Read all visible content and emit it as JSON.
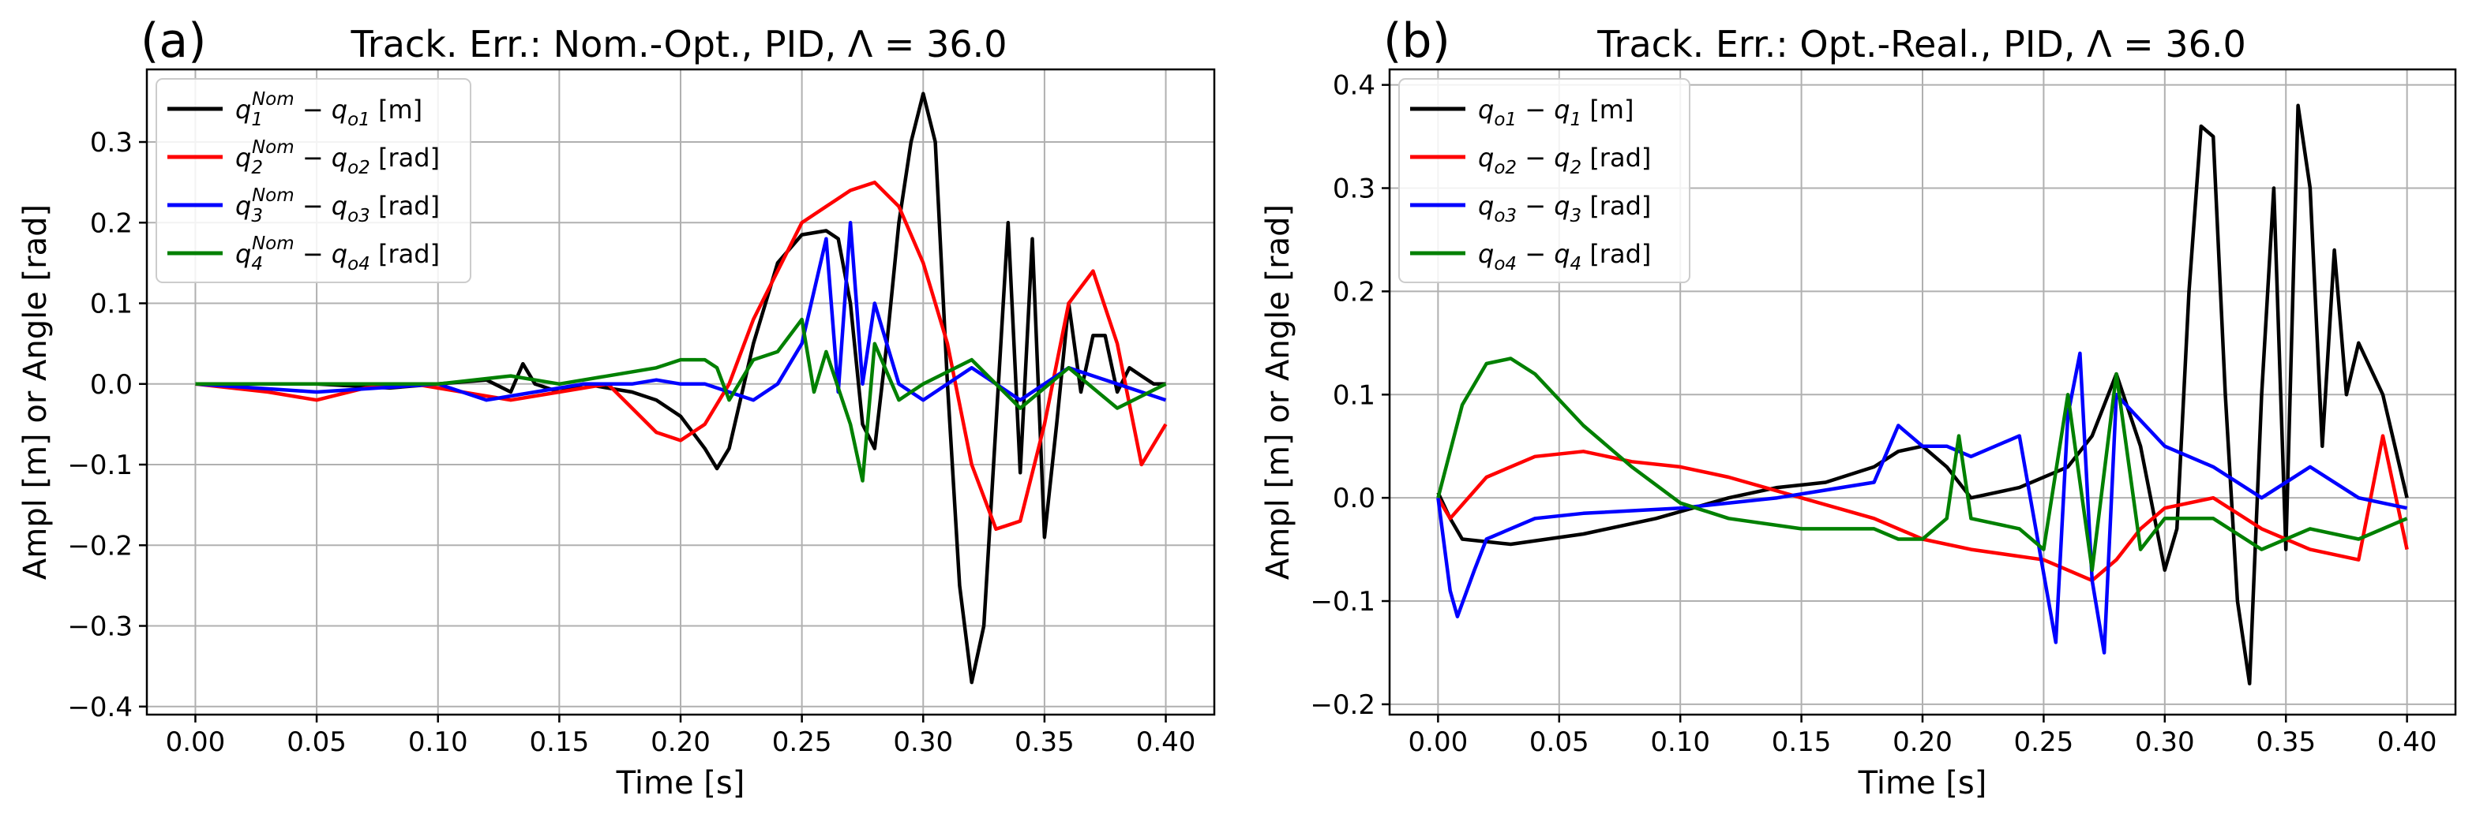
{
  "chart_data": [
    {
      "type": "line",
      "panel_label": "(a)",
      "title": "Track. Err.: Nom.-Opt., PID, Λ = 36.0",
      "xlabel": "Time [s]",
      "ylabel": "Ampl [m] or Angle [rad]",
      "xlim": [
        -0.02,
        0.42
      ],
      "ylim": [
        -0.41,
        0.39
      ],
      "xticks": [
        0.0,
        0.05,
        0.1,
        0.15,
        0.2,
        0.25,
        0.3,
        0.35,
        0.4
      ],
      "xtick_labels": [
        "0.00",
        "0.05",
        "0.10",
        "0.15",
        "0.20",
        "0.25",
        "0.30",
        "0.35",
        "0.40"
      ],
      "yticks": [
        -0.4,
        -0.3,
        -0.2,
        -0.1,
        0.0,
        0.1,
        0.2,
        0.3
      ],
      "ytick_labels": [
        "−0.4",
        "−0.3",
        "−0.2",
        "−0.1",
        "0.0",
        "0.1",
        "0.2",
        "0.3"
      ],
      "grid": true,
      "legend_position": "top-left",
      "series": [
        {
          "name": "q1Nom − qo1 [m]",
          "legend": {
            "base": "q",
            "sub": "1",
            "sup": "Nom",
            "rest": " − q",
            "rest_sub": "o1",
            "unit": " [m]"
          },
          "color": "#000000",
          "x": [
            0,
            0.05,
            0.08,
            0.1,
            0.12,
            0.13,
            0.135,
            0.14,
            0.15,
            0.16,
            0.18,
            0.19,
            0.2,
            0.21,
            0.215,
            0.22,
            0.23,
            0.24,
            0.25,
            0.26,
            0.265,
            0.27,
            0.275,
            0.28,
            0.285,
            0.29,
            0.295,
            0.3,
            0.305,
            0.31,
            0.315,
            0.32,
            0.325,
            0.33,
            0.335,
            0.34,
            0.345,
            0.35,
            0.355,
            0.36,
            0.365,
            0.37,
            0.375,
            0.38,
            0.385,
            0.39,
            0.395,
            0.4
          ],
          "y": [
            0,
            0.0,
            -0.005,
            0.0,
            0.005,
            -0.01,
            0.025,
            0.0,
            -0.01,
            0.0,
            -0.01,
            -0.02,
            -0.04,
            -0.08,
            -0.105,
            -0.08,
            0.05,
            0.15,
            0.185,
            0.19,
            0.18,
            0.1,
            -0.05,
            -0.08,
            0.05,
            0.2,
            0.3,
            0.36,
            0.3,
            0.0,
            -0.25,
            -0.37,
            -0.3,
            -0.05,
            0.2,
            -0.11,
            0.18,
            -0.19,
            -0.05,
            0.1,
            -0.01,
            0.06,
            0.06,
            -0.01,
            0.02,
            0.01,
            0.0,
            0.0
          ]
        },
        {
          "name": "q2Nom − qo2 [rad]",
          "legend": {
            "base": "q",
            "sub": "2",
            "sup": "Nom",
            "rest": " − q",
            "rest_sub": "o2",
            "unit": " [rad]"
          },
          "color": "#ff0000",
          "x": [
            0,
            0.03,
            0.05,
            0.07,
            0.09,
            0.11,
            0.13,
            0.15,
            0.17,
            0.19,
            0.2,
            0.21,
            0.22,
            0.23,
            0.24,
            0.25,
            0.26,
            0.27,
            0.28,
            0.29,
            0.3,
            0.31,
            0.32,
            0.33,
            0.34,
            0.35,
            0.36,
            0.37,
            0.38,
            0.39,
            0.4
          ],
          "y": [
            0,
            -0.01,
            -0.02,
            -0.005,
            0.0,
            -0.01,
            -0.02,
            -0.01,
            0.0,
            -0.06,
            -0.07,
            -0.05,
            0.0,
            0.08,
            0.14,
            0.2,
            0.22,
            0.24,
            0.25,
            0.22,
            0.15,
            0.05,
            -0.1,
            -0.18,
            -0.17,
            -0.05,
            0.1,
            0.14,
            0.05,
            -0.1,
            -0.05
          ]
        },
        {
          "name": "q3Nom − qo3 [rad]",
          "legend": {
            "base": "q",
            "sub": "3",
            "sup": "Nom",
            "rest": " − q",
            "rest_sub": "o3",
            "unit": " [rad]"
          },
          "color": "#0000ff",
          "x": [
            0,
            0.05,
            0.1,
            0.12,
            0.14,
            0.16,
            0.18,
            0.19,
            0.2,
            0.21,
            0.22,
            0.23,
            0.24,
            0.25,
            0.26,
            0.265,
            0.27,
            0.275,
            0.28,
            0.29,
            0.3,
            0.32,
            0.34,
            0.36,
            0.38,
            0.4
          ],
          "y": [
            0,
            -0.01,
            0.0,
            -0.02,
            -0.01,
            0.0,
            0.0,
            0.005,
            0.0,
            0.0,
            -0.01,
            -0.02,
            0.0,
            0.05,
            0.18,
            -0.01,
            0.2,
            0.0,
            0.1,
            0.0,
            -0.02,
            0.02,
            -0.02,
            0.02,
            0.0,
            -0.02
          ]
        },
        {
          "name": "q4Nom − qo4 [rad]",
          "legend": {
            "base": "q",
            "sub": "4",
            "sup": "Nom",
            "rest": " − q",
            "rest_sub": "o4",
            "unit": " [rad]"
          },
          "color": "#008000",
          "x": [
            0,
            0.05,
            0.1,
            0.13,
            0.15,
            0.19,
            0.195,
            0.2,
            0.21,
            0.215,
            0.22,
            0.23,
            0.24,
            0.25,
            0.255,
            0.26,
            0.27,
            0.275,
            0.28,
            0.29,
            0.3,
            0.32,
            0.34,
            0.36,
            0.38,
            0.4
          ],
          "y": [
            0,
            0.0,
            0.0,
            0.01,
            0.0,
            0.02,
            0.025,
            0.03,
            0.03,
            0.02,
            -0.02,
            0.03,
            0.04,
            0.08,
            -0.01,
            0.04,
            -0.05,
            -0.12,
            0.05,
            -0.02,
            0.0,
            0.03,
            -0.03,
            0.02,
            -0.03,
            0.0
          ]
        }
      ]
    },
    {
      "type": "line",
      "panel_label": "(b)",
      "title": "Track. Err.: Opt.-Real., PID, Λ = 36.0",
      "xlabel": "Time [s]",
      "ylabel": "Ampl [m] or Angle [rad]",
      "xlim": [
        -0.02,
        0.42
      ],
      "ylim": [
        -0.21,
        0.415
      ],
      "xticks": [
        0.0,
        0.05,
        0.1,
        0.15,
        0.2,
        0.25,
        0.3,
        0.35,
        0.4
      ],
      "xtick_labels": [
        "0.00",
        "0.05",
        "0.10",
        "0.15",
        "0.20",
        "0.25",
        "0.30",
        "0.35",
        "0.40"
      ],
      "yticks": [
        -0.2,
        -0.1,
        0.0,
        0.1,
        0.2,
        0.3,
        0.4
      ],
      "ytick_labels": [
        "−0.2",
        "−0.1",
        "0.0",
        "0.1",
        "0.2",
        "0.3",
        "0.4"
      ],
      "grid": true,
      "legend_position": "top-left",
      "series": [
        {
          "name": "qo1 − q1 [m]",
          "legend": {
            "base": "q",
            "sub": "o1",
            "sup": "",
            "rest": " − q",
            "rest_sub": "1",
            "unit": " [m]"
          },
          "color": "#000000",
          "x": [
            0,
            0.005,
            0.01,
            0.03,
            0.06,
            0.09,
            0.12,
            0.14,
            0.16,
            0.18,
            0.19,
            0.2,
            0.21,
            0.22,
            0.24,
            0.26,
            0.27,
            0.28,
            0.29,
            0.3,
            0.305,
            0.31,
            0.315,
            0.32,
            0.325,
            0.33,
            0.335,
            0.34,
            0.345,
            0.35,
            0.355,
            0.36,
            0.365,
            0.37,
            0.375,
            0.38,
            0.39,
            0.4
          ],
          "y": [
            0.005,
            -0.02,
            -0.04,
            -0.045,
            -0.035,
            -0.02,
            0.0,
            0.01,
            0.015,
            0.03,
            0.045,
            0.05,
            0.03,
            0.0,
            0.01,
            0.03,
            0.06,
            0.12,
            0.05,
            -0.07,
            -0.03,
            0.2,
            0.36,
            0.35,
            0.1,
            -0.1,
            -0.18,
            0.1,
            0.3,
            -0.05,
            0.38,
            0.3,
            0.05,
            0.24,
            0.1,
            0.15,
            0.1,
            0.0
          ]
        },
        {
          "name": "qo2 − q2 [rad]",
          "legend": {
            "base": "q",
            "sub": "o2",
            "sup": "",
            "rest": " − q",
            "rest_sub": "2",
            "unit": " [rad]"
          },
          "color": "#ff0000",
          "x": [
            0,
            0.005,
            0.02,
            0.04,
            0.06,
            0.08,
            0.1,
            0.12,
            0.15,
            0.18,
            0.19,
            0.2,
            0.22,
            0.25,
            0.27,
            0.28,
            0.29,
            0.3,
            0.32,
            0.34,
            0.36,
            0.38,
            0.39,
            0.4
          ],
          "y": [
            0.0,
            -0.02,
            0.02,
            0.04,
            0.045,
            0.035,
            0.03,
            0.02,
            0.0,
            -0.02,
            -0.03,
            -0.04,
            -0.05,
            -0.06,
            -0.08,
            -0.06,
            -0.03,
            -0.01,
            0.0,
            -0.03,
            -0.05,
            -0.06,
            0.06,
            -0.05
          ]
        },
        {
          "name": "qo3 − q3 [rad]",
          "legend": {
            "base": "q",
            "sub": "o3",
            "sup": "",
            "rest": " − q",
            "rest_sub": "3",
            "unit": " [rad]"
          },
          "color": "#0000ff",
          "x": [
            0,
            0.005,
            0.008,
            0.015,
            0.02,
            0.04,
            0.06,
            0.1,
            0.14,
            0.18,
            0.19,
            0.2,
            0.21,
            0.22,
            0.24,
            0.255,
            0.26,
            0.265,
            0.27,
            0.275,
            0.28,
            0.3,
            0.32,
            0.34,
            0.36,
            0.38,
            0.4
          ],
          "y": [
            0.0,
            -0.09,
            -0.115,
            -0.07,
            -0.04,
            -0.02,
            -0.015,
            -0.01,
            0.0,
            0.015,
            0.07,
            0.05,
            0.05,
            0.04,
            0.06,
            -0.14,
            0.08,
            0.14,
            -0.08,
            -0.15,
            0.1,
            0.05,
            0.03,
            0.0,
            0.03,
            0.0,
            -0.01
          ]
        },
        {
          "name": "qo4 − q4 [rad]",
          "legend": {
            "base": "q",
            "sub": "o4",
            "sup": "",
            "rest": " − q",
            "rest_sub": "4",
            "unit": " [rad]"
          },
          "color": "#008000",
          "x": [
            0,
            0.01,
            0.02,
            0.03,
            0.04,
            0.06,
            0.08,
            0.1,
            0.12,
            0.15,
            0.18,
            0.19,
            0.2,
            0.21,
            0.215,
            0.22,
            0.24,
            0.25,
            0.26,
            0.27,
            0.28,
            0.29,
            0.3,
            0.32,
            0.34,
            0.36,
            0.38,
            0.4
          ],
          "y": [
            0.0,
            0.09,
            0.13,
            0.135,
            0.12,
            0.07,
            0.03,
            -0.005,
            -0.02,
            -0.03,
            -0.03,
            -0.04,
            -0.04,
            -0.02,
            0.06,
            -0.02,
            -0.03,
            -0.05,
            0.1,
            -0.07,
            0.12,
            -0.05,
            -0.02,
            -0.02,
            -0.05,
            -0.03,
            -0.04,
            -0.02
          ]
        }
      ]
    }
  ]
}
